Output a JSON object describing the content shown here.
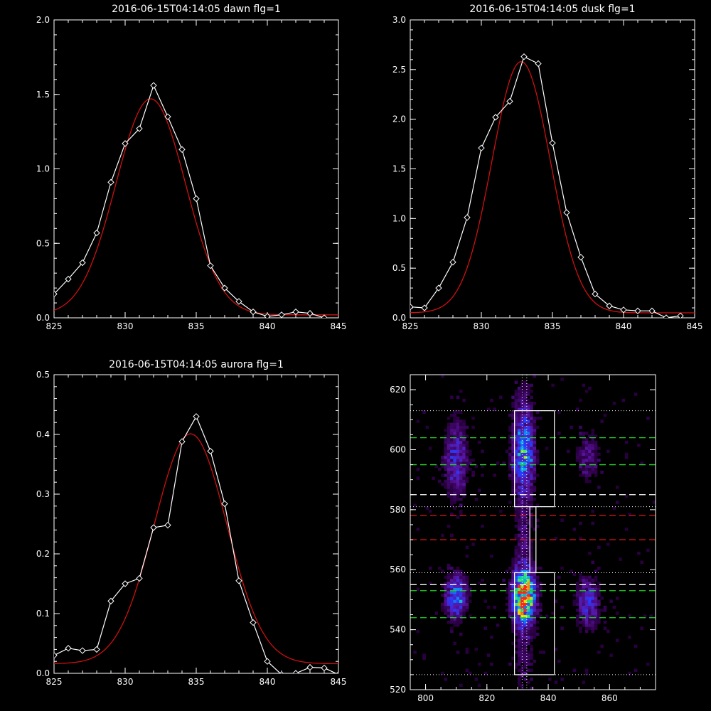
{
  "colors": {
    "background": "#000000",
    "axes": "#ffffff",
    "observed": "#ffffff",
    "fit": "#d01010",
    "green_line": "#20d020",
    "red_line": "#d01010",
    "white_line": "#ffffff"
  },
  "chart_data": [
    {
      "id": "dawn",
      "type": "line",
      "title": "2016-06-15T04:14:05 dawn flg=1",
      "xlim": [
        825,
        845
      ],
      "ylim": [
        0,
        2.0
      ],
      "xticks": [
        "825",
        "830",
        "835",
        "840",
        "845"
      ],
      "yticks": [
        "0.0",
        "0.5",
        "1.0",
        "1.5",
        "2.0"
      ],
      "observed": {
        "x": [
          825,
          826,
          827,
          828,
          829,
          830,
          831,
          832,
          833,
          834,
          835,
          836,
          837,
          838,
          839,
          840,
          841,
          842,
          843,
          844
        ],
        "y": [
          0.16,
          0.26,
          0.37,
          0.57,
          0.91,
          1.17,
          1.27,
          1.56,
          1.35,
          1.13,
          0.8,
          0.35,
          0.2,
          0.11,
          0.04,
          0.01,
          0.02,
          0.04,
          0.03,
          0.0
        ]
      },
      "fit": {
        "type": "gaussian",
        "amplitude": 1.45,
        "center": 831.8,
        "sigma": 2.45,
        "offset": 0.02
      }
    },
    {
      "id": "dusk",
      "type": "line",
      "title": "2016-06-15T04:14:05 dusk flg=1",
      "xlim": [
        825,
        845
      ],
      "ylim": [
        0,
        3.0
      ],
      "xticks": [
        "825",
        "830",
        "835",
        "840",
        "845"
      ],
      "yticks": [
        "0.0",
        "0.5",
        "1.0",
        "1.5",
        "2.0",
        "2.5",
        "3.0"
      ],
      "observed": {
        "x": [
          825,
          826,
          827,
          828,
          829,
          830,
          831,
          832,
          833,
          834,
          835,
          836,
          837,
          838,
          839,
          840,
          841,
          842,
          843,
          844
        ],
        "y": [
          0.11,
          0.1,
          0.3,
          0.56,
          1.01,
          1.71,
          2.02,
          2.18,
          2.63,
          2.56,
          1.76,
          1.06,
          0.61,
          0.24,
          0.12,
          0.08,
          0.07,
          0.07,
          0.0,
          0.02
        ]
      },
      "fit": {
        "type": "gaussian",
        "amplitude": 2.53,
        "center": 832.8,
        "sigma": 2.05,
        "offset": 0.05
      }
    },
    {
      "id": "aurora",
      "type": "line",
      "title": "2016-06-15T04:14:05 aurora flg=1",
      "xlim": [
        825,
        845
      ],
      "ylim": [
        0,
        0.5
      ],
      "xticks": [
        "825",
        "830",
        "835",
        "840",
        "845"
      ],
      "yticks": [
        "0.0",
        "0.1",
        "0.2",
        "0.3",
        "0.4",
        "0.5"
      ],
      "observed": {
        "x": [
          825,
          826,
          827,
          828,
          829,
          830,
          831,
          832,
          833,
          834,
          835,
          836,
          837,
          838,
          839,
          840,
          841,
          842,
          843,
          844,
          845
        ],
        "y": [
          0.03,
          0.042,
          0.038,
          0.04,
          0.121,
          0.15,
          0.159,
          0.244,
          0.248,
          0.388,
          0.43,
          0.372,
          0.284,
          0.155,
          0.085,
          0.02,
          -0.002,
          0.0,
          0.01,
          0.009,
          -0.002
        ]
      },
      "fit": {
        "type": "gaussian",
        "amplitude": 0.385,
        "center": 834.6,
        "sigma": 2.55,
        "offset": 0.016
      }
    },
    {
      "id": "image",
      "type": "heatmap",
      "xlim": [
        795,
        875
      ],
      "ylim": [
        520,
        625
      ],
      "xticks": [
        "800",
        "820",
        "840",
        "860"
      ],
      "yticks": [
        "520",
        "540",
        "560",
        "580",
        "600",
        "620"
      ],
      "blobs": [
        {
          "x": 832,
          "y": 551,
          "amp": 1.0,
          "sx": 2.6,
          "sy": 6.5
        },
        {
          "x": 832,
          "y": 598,
          "amp": 0.62,
          "sx": 2.4,
          "sy": 9
        },
        {
          "x": 810,
          "y": 551,
          "amp": 0.55,
          "sx": 2.5,
          "sy": 5
        },
        {
          "x": 810,
          "y": 597,
          "amp": 0.35,
          "sx": 2.6,
          "sy": 9
        },
        {
          "x": 853,
          "y": 549,
          "amp": 0.38,
          "sx": 2.6,
          "sy": 6
        },
        {
          "x": 853,
          "y": 598,
          "amp": 0.22,
          "sx": 2.6,
          "sy": 6
        },
        {
          "x": 832,
          "y": 572,
          "amp": 0.18,
          "sx": 2.0,
          "sy": 9
        },
        {
          "x": 832,
          "y": 530,
          "amp": 0.15,
          "sx": 2.5,
          "sy": 8
        },
        {
          "x": 832,
          "y": 615,
          "amp": 0.14,
          "sx": 2.5,
          "sy": 6
        }
      ],
      "vlines_dotted": [
        831.5,
        833
      ],
      "hlines_dotted": [
        613,
        581,
        559,
        525
      ],
      "hlines_green": [
        604,
        595,
        553,
        544
      ],
      "hlines_white_dashed": [
        585,
        555
      ],
      "hlines_red": [
        578,
        570
      ],
      "boxes": [
        {
          "x0": 829,
          "x1": 842,
          "y0": 581,
          "y1": 613
        },
        {
          "x0": 829,
          "x1": 842,
          "y0": 525,
          "y1": 559
        },
        {
          "x0": 834,
          "x1": 836,
          "y0": 559,
          "y1": 581
        }
      ]
    }
  ]
}
